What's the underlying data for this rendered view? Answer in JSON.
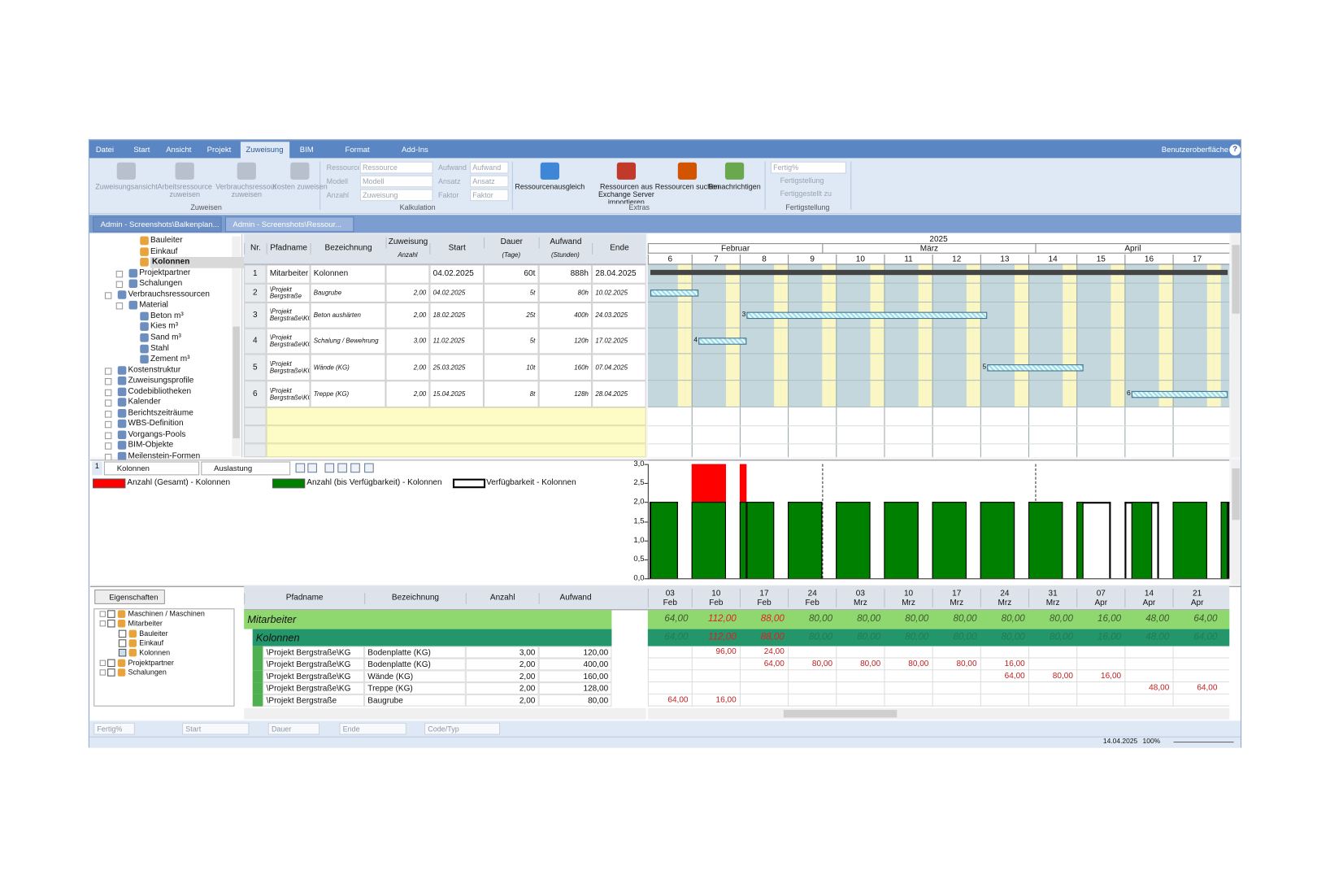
{
  "ribbon": {
    "tabs": [
      "Datei",
      "Start",
      "Ansicht",
      "Projekt",
      "Zuweisung",
      "BIM",
      "Format",
      "Add-Ins"
    ],
    "active_tab": 4,
    "ui_menu": "Benutzeroberfläche",
    "help": "?",
    "zuweisen": {
      "label": "Zuweisen",
      "buttons": [
        "Zuweisungsansicht",
        "Arbeitsressource zuweisen",
        "Verbrauchsressource zuweisen",
        "Kosten zuweisen"
      ]
    },
    "kalkulation": {
      "label": "Kalkulation",
      "fields": [
        {
          "label": "Ressource",
          "value": "Ressource"
        },
        {
          "label": "Modell",
          "value": "Modell"
        },
        {
          "label": "Anzahl",
          "value": "Zuweisung"
        },
        {
          "label": "Aufwand",
          "value": "Aufwand"
        },
        {
          "label": "Ansatz",
          "value": "Ansatz"
        },
        {
          "label": "Faktor",
          "value": "Faktor"
        }
      ]
    },
    "extras": {
      "label": "Extras",
      "buttons": [
        "Ressourcenausgleich",
        "Ressourcen aus Exchange Server importieren",
        "Ressourcen suchen",
        "Benachrichtigen"
      ]
    },
    "fertigstellung": {
      "label": "Fertigstellung",
      "field": "Fertig%",
      "buttons": [
        "Fertigstellung",
        "Fertiggestellt zu"
      ]
    }
  },
  "doc_tabs": [
    "Admin - Screenshots\\Balkenplan...",
    "Admin - Screenshots\\Ressour..."
  ],
  "resource_tree": [
    {
      "label": "Bauleiter",
      "level": 2
    },
    {
      "label": "Einkauf",
      "level": 2
    },
    {
      "label": "Kolonnen",
      "level": 2,
      "selected": true
    },
    {
      "label": "Projektpartner",
      "level": 1,
      "node": "collapsed"
    },
    {
      "label": "Schalungen",
      "level": 1,
      "node": "collapsed"
    },
    {
      "label": "Verbrauchsressourcen",
      "level": 0,
      "node": "expanded"
    },
    {
      "label": "Material",
      "level": 1,
      "node": "expanded"
    },
    {
      "label": "Beton m³",
      "level": 2
    },
    {
      "label": "Kies m³",
      "level": 2
    },
    {
      "label": "Sand m³",
      "level": 2
    },
    {
      "label": "Stahl",
      "level": 2
    },
    {
      "label": "Zement m³",
      "level": 2
    },
    {
      "label": "Kostenstruktur",
      "level": 0,
      "node": "collapsed"
    },
    {
      "label": "Zuweisungsprofile",
      "level": 0,
      "node": "collapsed"
    },
    {
      "label": "Codebibliotheken",
      "level": 0,
      "node": "collapsed"
    },
    {
      "label": "Kalender",
      "level": 0,
      "node": "collapsed"
    },
    {
      "label": "Berichtszeiträume",
      "level": 0,
      "node": "collapsed"
    },
    {
      "label": "WBS-Definition",
      "level": 0,
      "node": "collapsed"
    },
    {
      "label": "Vorgangs-Pools",
      "level": 0,
      "node": "collapsed"
    },
    {
      "label": "BIM-Objekte",
      "level": 0,
      "node": "collapsed"
    },
    {
      "label": "Meilenstein-Formen",
      "level": 0,
      "node": "collapsed"
    }
  ],
  "assignment_table": {
    "headers": [
      {
        "title": "Nr."
      },
      {
        "title": "Pfadname"
      },
      {
        "title": "Bezeichnung"
      },
      {
        "title": "Zuweisung",
        "sub": "Anzahl"
      },
      {
        "title": "Start"
      },
      {
        "title": "Dauer",
        "sub": "(Tage)"
      },
      {
        "title": "Aufwand",
        "sub": "(Stunden)"
      },
      {
        "title": "Ende"
      }
    ],
    "rows": [
      [
        "1",
        "Mitarbeiter",
        "Kolonnen",
        null,
        "04.02.2025",
        "60t",
        "888h",
        "28.04.2025"
      ],
      [
        "2",
        "\\Projekt Bergstraße",
        "Baugrube",
        "2,00",
        "04.02.2025",
        "5t",
        "80h",
        "10.02.2025"
      ],
      [
        "3",
        "\\Projekt Bergstraße\\KG",
        "Beton aushärten",
        "2,00",
        "18.02.2025",
        "25t",
        "400h",
        "24.03.2025"
      ],
      [
        "4",
        "\\Projekt Bergstraße\\KG",
        "Schalung / Bewehrung",
        "3,00",
        "11.02.2025",
        "5t",
        "120h",
        "17.02.2025"
      ],
      [
        "5",
        "\\Projekt Bergstraße\\KG",
        "Wände (KG)",
        "2,00",
        "25.03.2025",
        "10t",
        "160h",
        "07.04.2025"
      ],
      [
        "6",
        "\\Projekt Bergstraße\\KG",
        "Treppe (KG)",
        "2,00",
        "15.04.2025",
        "8t",
        "128h",
        "28.04.2025"
      ]
    ]
  },
  "gantt": {
    "year": "2025",
    "months": [
      {
        "label": "Februar",
        "start": "01.02.2025"
      },
      {
        "label": "März",
        "start": "01.03.2025"
      },
      {
        "label": "April",
        "start": "01.04.2025"
      }
    ],
    "weeks": [
      {
        "label": "6",
        "start": "03.02.2025"
      },
      {
        "label": "7",
        "start": "10.02.2025"
      },
      {
        "label": "8",
        "start": "17.02.2025"
      },
      {
        "label": "9",
        "start": "24.02.2025"
      },
      {
        "label": "10",
        "start": "03.03.2025"
      },
      {
        "label": "11",
        "start": "10.03.2025"
      },
      {
        "label": "12",
        "start": "17.03.2025"
      },
      {
        "label": "13",
        "start": "24.03.2025"
      },
      {
        "label": "14",
        "start": "31.03.2025"
      },
      {
        "label": "15",
        "start": "07.04.2025"
      },
      {
        "label": "16",
        "start": "14.04.2025"
      },
      {
        "label": "17",
        "start": "21.04.2025"
      }
    ]
  },
  "histogram": {
    "type": "bar",
    "index": "1",
    "resource": "Kolonnen",
    "mode": "Auslastung",
    "series": [
      {
        "name": "Anzahl (Gesamt) - Kolonnen",
        "color": "#ff0000"
      },
      {
        "name": "Anzahl (bis Verfügbarkeit) - Kolonnen",
        "color": "#008000"
      },
      {
        "name": "Verfügbarkeit - Kolonnen",
        "color": "#000000"
      }
    ],
    "ylim": [
      0,
      3
    ],
    "yticks": [
      {
        "value": 0,
        "label": "0,0"
      },
      {
        "value": 0.5,
        "label": "0,5"
      },
      {
        "value": 1,
        "label": "1,0"
      },
      {
        "value": 1.5,
        "label": "1,5"
      },
      {
        "value": 2,
        "label": "2,0"
      },
      {
        "value": 2.5,
        "label": "2,5"
      },
      {
        "value": 3,
        "label": "3,0"
      }
    ],
    "availability": 2,
    "segments": [
      {
        "from": "04.02.2025",
        "to": "07.02.2025",
        "total": 2,
        "capped": 2
      },
      {
        "from": "10.02.2025",
        "to": "14.02.2025",
        "total": 3,
        "capped": 2
      },
      {
        "from": "17.02.2025",
        "to": "17.02.2025",
        "total": 3,
        "capped": 2
      },
      {
        "from": "18.02.2025",
        "to": "21.02.2025",
        "total": 2,
        "capped": 2
      },
      {
        "from": "24.02.2025",
        "to": "28.02.2025",
        "total": 2,
        "capped": 2
      },
      {
        "from": "03.03.2025",
        "to": "07.03.2025",
        "total": 2,
        "capped": 2
      },
      {
        "from": "10.03.2025",
        "to": "14.03.2025",
        "total": 2,
        "capped": 2
      },
      {
        "from": "17.03.2025",
        "to": "21.03.2025",
        "total": 2,
        "capped": 2
      },
      {
        "from": "24.03.2025",
        "to": "28.03.2025",
        "total": 2,
        "capped": 2
      },
      {
        "from": "31.03.2025",
        "to": "04.04.2025",
        "total": 2,
        "capped": 2
      },
      {
        "from": "07.04.2025",
        "to": "07.04.2025",
        "total": 2,
        "capped": 2
      },
      {
        "from": "15.04.2025",
        "to": "17.04.2025",
        "total": 2,
        "capped": 2
      },
      {
        "from": "21.04.2025",
        "to": "25.04.2025",
        "total": 2,
        "capped": 2
      },
      {
        "from": "28.04.2025",
        "to": "28.04.2025",
        "total": 2,
        "capped": 2
      }
    ]
  },
  "utilization": {
    "properties_button": "Eigenschaften",
    "tree": [
      {
        "label": "Maschinen / Maschinen",
        "level": 0,
        "node": "collapsed",
        "checked": false
      },
      {
        "label": "Mitarbeiter",
        "level": 0,
        "node": "expanded",
        "checked": false
      },
      {
        "label": "Bauleiter",
        "level": 1,
        "checked": false
      },
      {
        "label": "Einkauf",
        "level": 1,
        "checked": false
      },
      {
        "label": "Kolonnen",
        "level": 1,
        "checked": true
      },
      {
        "label": "Projektpartner",
        "level": 0,
        "node": "collapsed",
        "checked": false
      },
      {
        "label": "Schalungen",
        "level": 0,
        "node": "collapsed",
        "checked": false
      }
    ],
    "headers": [
      "Pfadname",
      "Bezeichnung",
      "Anzahl",
      "Aufwand"
    ],
    "periods": [
      {
        "day": "03",
        "month": "Feb"
      },
      {
        "day": "10",
        "month": "Feb"
      },
      {
        "day": "17",
        "month": "Feb"
      },
      {
        "day": "24",
        "month": "Feb"
      },
      {
        "day": "03",
        "month": "Mrz"
      },
      {
        "day": "10",
        "month": "Mrz"
      },
      {
        "day": "17",
        "month": "Mrz"
      },
      {
        "day": "24",
        "month": "Mrz"
      },
      {
        "day": "31",
        "month": "Mrz"
      },
      {
        "day": "07",
        "month": "Apr"
      },
      {
        "day": "14",
        "month": "Apr"
      },
      {
        "day": "21",
        "month": "Apr"
      }
    ],
    "overloaded_periods": [
      1,
      2
    ],
    "group": {
      "label": "Mitarbeiter",
      "values": [
        "64,00",
        "112,00",
        "88,00",
        "80,00",
        "80,00",
        "80,00",
        "80,00",
        "80,00",
        "80,00",
        "16,00",
        "48,00",
        "64,00"
      ]
    },
    "subgroup": {
      "label": "Kolonnen",
      "values": [
        "64,00",
        "112,00",
        "88,00",
        "80,00",
        "80,00",
        "80,00",
        "80,00",
        "80,00",
        "80,00",
        "16,00",
        "48,00",
        "64,00"
      ]
    },
    "rows": [
      {
        "path": "\\Projekt Bergstraße\\KG",
        "name": "Bodenplatte (KG)",
        "count": "3,00",
        "effort": "120,00",
        "values": [
          null,
          "96,00",
          "24,00",
          null,
          null,
          null,
          null,
          null,
          null,
          null,
          null,
          null
        ]
      },
      {
        "path": "\\Projekt Bergstraße\\KG",
        "name": "Bodenplatte (KG)",
        "count": "2,00",
        "effort": "400,00",
        "values": [
          null,
          null,
          "64,00",
          "80,00",
          "80,00",
          "80,00",
          "80,00",
          "16,00",
          null,
          null,
          null,
          null
        ]
      },
      {
        "path": "\\Projekt Bergstraße\\KG",
        "name": "Wände (KG)",
        "count": "2,00",
        "effort": "160,00",
        "values": [
          null,
          null,
          null,
          null,
          null,
          null,
          null,
          "64,00",
          "80,00",
          "16,00",
          null,
          null
        ]
      },
      {
        "path": "\\Projekt Bergstraße\\KG",
        "name": "Treppe (KG)",
        "count": "2,00",
        "effort": "128,00",
        "values": [
          null,
          null,
          null,
          null,
          null,
          null,
          null,
          null,
          null,
          null,
          "48,00",
          "64,00"
        ]
      },
      {
        "path": "\\Projekt Bergstraße",
        "name": "Baugrube",
        "count": "2,00",
        "effort": "80,00",
        "values": [
          "64,00",
          "16,00",
          null,
          null,
          null,
          null,
          null,
          null,
          null,
          null,
          null,
          null
        ]
      }
    ]
  },
  "filter_bar": [
    "Fertig%",
    "Start",
    "Dauer",
    "Ende",
    "Code/Typ"
  ],
  "status": {
    "date": "14.04.2025",
    "zoom": "100%"
  }
}
